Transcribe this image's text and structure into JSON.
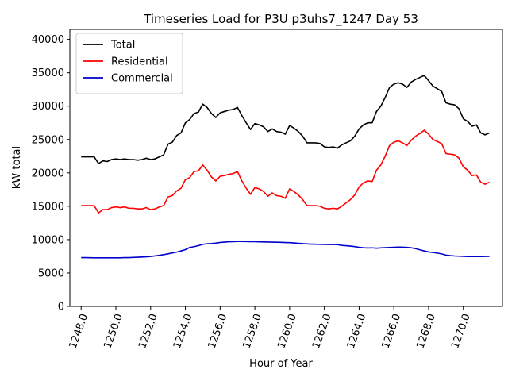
{
  "chart_data": {
    "type": "line",
    "title": "Timeseries Load for P3U p3uhs7_1247  Day 53",
    "xlabel": "Hour of Year",
    "ylabel": "kW total",
    "xlim": [
      1247.35,
      1272.25
    ],
    "ylim": [
      0,
      41500
    ],
    "x_ticks": [
      1248,
      1250,
      1252,
      1254,
      1256,
      1258,
      1260,
      1262,
      1264,
      1266,
      1268,
      1270
    ],
    "x_tick_labels": [
      "1248.0",
      "1250.0",
      "1252.0",
      "1254.0",
      "1256.0",
      "1258.0",
      "1260.0",
      "1262.0",
      "1264.0",
      "1266.0",
      "1268.0",
      "1270.0"
    ],
    "y_ticks": [
      0,
      5000,
      10000,
      15000,
      20000,
      25000,
      30000,
      35000,
      40000
    ],
    "y_tick_labels": [
      "0",
      "5000",
      "10000",
      "15000",
      "20000",
      "25000",
      "30000",
      "35000",
      "40000"
    ],
    "grid": false,
    "legend_position": "top-left",
    "x": [
      1248.0,
      1248.25,
      1248.5,
      1248.75,
      1249.0,
      1249.25,
      1249.5,
      1249.75,
      1250.0,
      1250.25,
      1250.5,
      1250.75,
      1251.0,
      1251.25,
      1251.5,
      1251.75,
      1252.0,
      1252.25,
      1252.5,
      1252.75,
      1253.0,
      1253.25,
      1253.5,
      1253.75,
      1254.0,
      1254.25,
      1254.5,
      1254.75,
      1255.0,
      1255.25,
      1255.5,
      1255.75,
      1256.0,
      1256.25,
      1256.5,
      1256.75,
      1257.0,
      1257.25,
      1257.5,
      1257.75,
      1258.0,
      1258.25,
      1258.5,
      1258.75,
      1259.0,
      1259.25,
      1259.5,
      1259.75,
      1260.0,
      1260.25,
      1260.5,
      1260.75,
      1261.0,
      1261.25,
      1261.5,
      1261.75,
      1262.0,
      1262.25,
      1262.5,
      1262.75,
      1263.0,
      1263.25,
      1263.5,
      1263.75,
      1264.0,
      1264.25,
      1264.5,
      1264.75,
      1265.0,
      1265.25,
      1265.5,
      1265.75,
      1266.0,
      1266.25,
      1266.5,
      1266.75,
      1267.0,
      1267.25,
      1267.5,
      1267.75,
      1268.0,
      1268.25,
      1268.5,
      1268.75,
      1269.0,
      1269.25,
      1269.5,
      1269.75,
      1270.0,
      1270.25,
      1270.5,
      1270.75,
      1271.0,
      1271.25,
      1271.5
    ],
    "series": [
      {
        "name": "Total",
        "color": "#000000",
        "values": [
          22400,
          22400,
          22400,
          22400,
          21400,
          21800,
          21700,
          22000,
          22100,
          22000,
          22100,
          22000,
          22000,
          21900,
          22000,
          22200,
          22000,
          22100,
          22400,
          22700,
          24300,
          24600,
          25600,
          26000,
          27500,
          28000,
          28900,
          29100,
          30300,
          29800,
          28900,
          28300,
          29000,
          29200,
          29400,
          29500,
          29800,
          28600,
          27500,
          26500,
          27400,
          27200,
          26900,
          26200,
          26600,
          26200,
          26100,
          25800,
          27100,
          26700,
          26200,
          25500,
          24500,
          24500,
          24500,
          24400,
          23900,
          23800,
          23900,
          23700,
          24200,
          24500,
          24800,
          25500,
          26600,
          27200,
          27500,
          27500,
          29200,
          30000,
          31300,
          32800,
          33300,
          33500,
          33300,
          32800,
          33600,
          34000,
          34300,
          34600,
          33800,
          33000,
          32600,
          32200,
          30500,
          30300,
          30200,
          29600,
          28100,
          27700,
          27000,
          27200,
          26000,
          25700,
          26000
        ]
      },
      {
        "name": "Residential",
        "color": "#ff0000",
        "values": [
          15100,
          15100,
          15100,
          15100,
          14000,
          14500,
          14500,
          14800,
          14900,
          14800,
          14900,
          14700,
          14700,
          14600,
          14600,
          14800,
          14500,
          14600,
          14900,
          15100,
          16400,
          16600,
          17300,
          17700,
          19000,
          19300,
          20200,
          20300,
          21200,
          20400,
          19400,
          18800,
          19500,
          19600,
          19800,
          19900,
          20200,
          18800,
          17700,
          16800,
          17800,
          17600,
          17200,
          16500,
          17000,
          16600,
          16500,
          16200,
          17600,
          17200,
          16700,
          16000,
          15100,
          15100,
          15100,
          15000,
          14700,
          14600,
          14700,
          14600,
          15000,
          15500,
          16000,
          16700,
          17900,
          18500,
          18800,
          18700,
          20400,
          21200,
          22500,
          24100,
          24600,
          24800,
          24500,
          24100,
          24900,
          25500,
          25900,
          26400,
          25800,
          25000,
          24700,
          24400,
          22900,
          22800,
          22700,
          22200,
          20900,
          20400,
          19600,
          19700,
          18600,
          18300,
          18600
        ]
      },
      {
        "name": "Commercial",
        "color": "#0000cc",
        "values": [
          7300,
          7300,
          7290,
          7280,
          7270,
          7270,
          7270,
          7270,
          7280,
          7280,
          7300,
          7310,
          7330,
          7360,
          7400,
          7430,
          7480,
          7560,
          7650,
          7750,
          7870,
          8000,
          8130,
          8300,
          8500,
          8830,
          8950,
          9100,
          9300,
          9380,
          9420,
          9480,
          9580,
          9630,
          9680,
          9700,
          9720,
          9720,
          9710,
          9700,
          9690,
          9670,
          9650,
          9640,
          9620,
          9610,
          9590,
          9570,
          9550,
          9500,
          9450,
          9400,
          9360,
          9330,
          9310,
          9290,
          9280,
          9270,
          9260,
          9250,
          9140,
          9090,
          9030,
          8950,
          8850,
          8780,
          8750,
          8770,
          8720,
          8760,
          8800,
          8830,
          8860,
          8880,
          8870,
          8840,
          8780,
          8650,
          8470,
          8300,
          8150,
          8070,
          7980,
          7860,
          7680,
          7600,
          7550,
          7520,
          7490,
          7470,
          7460,
          7460,
          7470,
          7480,
          7500
        ]
      }
    ]
  }
}
